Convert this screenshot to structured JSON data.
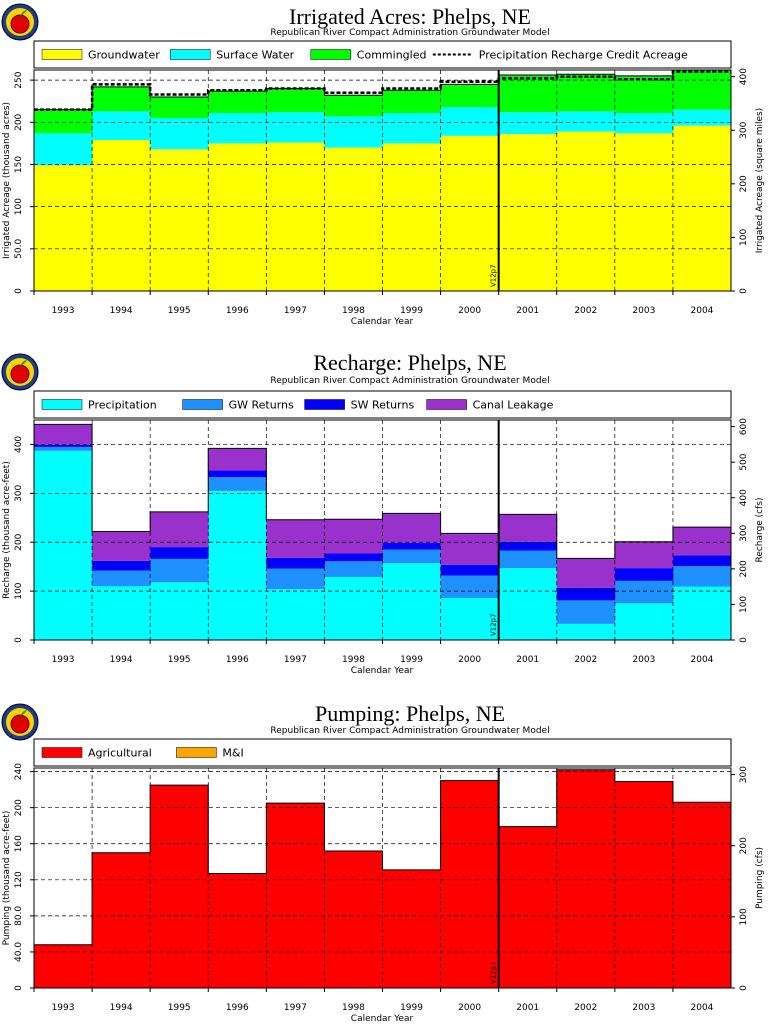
{
  "chart_data": [
    {
      "type": "area",
      "stacked": true,
      "step": true,
      "title": "Irrigated Acres: Phelps, NE",
      "subtitle": "Republican River Compact Administration Groundwater Model",
      "xlabel": "Calendar Year",
      "ylabel": "Irrigated Acreage (thousand acres)",
      "y2label": "Irrigated Acreage (square miles)",
      "categories": [
        "1993",
        "1994",
        "1995",
        "1996",
        "1997",
        "1998",
        "1999",
        "2000",
        "2001",
        "2002",
        "2003",
        "2004"
      ],
      "ylim": [
        0,
        262
      ],
      "yticks": [
        "0",
        "50.0",
        "100",
        "150",
        "200",
        "250"
      ],
      "y2ticks": [
        "0",
        "100",
        "200",
        "300",
        "400"
      ],
      "series": [
        {
          "name": "Groundwater",
          "color": "#ffff00",
          "values": [
            149,
            179,
            168,
            175,
            176,
            170,
            175,
            184,
            186,
            189,
            187,
            196
          ]
        },
        {
          "name": "Surface Water",
          "color": "#00ffff",
          "values": [
            38,
            34,
            37,
            36,
            36,
            37,
            36,
            34,
            26,
            24,
            24,
            19
          ]
        },
        {
          "name": "Commingled",
          "color": "#00ff00",
          "values": [
            28,
            29,
            25,
            26,
            28,
            25,
            27,
            27,
            44,
            44,
            44,
            47
          ]
        }
      ],
      "line": {
        "name": "Precipitation Recharge Credit Acreage",
        "values": [
          215,
          245,
          233,
          238,
          240,
          235,
          240,
          248,
          252,
          254,
          251,
          260
        ]
      },
      "marker": {
        "label": "V12p7",
        "after": "2000"
      },
      "legend": "top"
    },
    {
      "type": "area",
      "stacked": true,
      "step": true,
      "title": "Recharge: Phelps, NE",
      "subtitle": "Republican River Compact Administration Groundwater Model",
      "xlabel": "Calendar Year",
      "ylabel": "Recharge (thousand acre-feet)",
      "y2label": "Recharge (cfs)",
      "categories": [
        "1993",
        "1994",
        "1995",
        "1996",
        "1997",
        "1998",
        "1999",
        "2000",
        "2001",
        "2002",
        "2003",
        "2004"
      ],
      "ylim": [
        0,
        450
      ],
      "yticks": [
        "0",
        "100",
        "200",
        "300",
        "400"
      ],
      "y2ticks": [
        "0",
        "100",
        "200",
        "300",
        "400",
        "500",
        "600"
      ],
      "series": [
        {
          "name": "Precipitation",
          "color": "#00ffff",
          "values": [
            387,
            110,
            118,
            305,
            104,
            129,
            157,
            86,
            147,
            33,
            75,
            109
          ]
        },
        {
          "name": "GW Returns",
          "color": "#1e90ff",
          "values": [
            8,
            32,
            48,
            28,
            42,
            32,
            28,
            46,
            36,
            48,
            46,
            42
          ]
        },
        {
          "name": "SW Returns",
          "color": "#0000ff",
          "values": [
            4,
            20,
            24,
            14,
            22,
            16,
            14,
            22,
            18,
            26,
            26,
            22
          ]
        },
        {
          "name": "Canal Leakage",
          "color": "#9932cc",
          "values": [
            42,
            60,
            72,
            45,
            78,
            70,
            60,
            64,
            56,
            60,
            54,
            58
          ]
        }
      ],
      "marker": {
        "label": "V12p7",
        "after": "2000"
      },
      "legend": "top"
    },
    {
      "type": "area",
      "stacked": true,
      "step": true,
      "title": "Pumping: Phelps, NE",
      "subtitle": "Republican River Compact Administration Groundwater Model",
      "xlabel": "Calendar Year",
      "ylabel": "Pumping (thousand acre-feet)",
      "y2label": "Pumping (cfs)",
      "categories": [
        "1993",
        "1994",
        "1995",
        "1996",
        "1997",
        "1998",
        "1999",
        "2000",
        "2001",
        "2002",
        "2003",
        "2004"
      ],
      "ylim": [
        0,
        244
      ],
      "yticks": [
        "0",
        "40.0",
        "80.0",
        "120",
        "160",
        "200",
        "240"
      ],
      "y2ticks": [
        "0",
        "100",
        "200",
        "300"
      ],
      "series": [
        {
          "name": "Agricultural",
          "color": "#ff0000",
          "values": [
            48,
            150,
            225,
            127,
            205,
            152,
            131,
            230,
            179,
            242,
            229,
            206
          ]
        },
        {
          "name": "M&I",
          "color": "#ffa500",
          "values": [
            0,
            0,
            0,
            0,
            0,
            0,
            0,
            0,
            0,
            0,
            0,
            0
          ]
        }
      ],
      "marker": {
        "label": "V12p7",
        "after": "2000"
      },
      "legend": "top"
    }
  ]
}
